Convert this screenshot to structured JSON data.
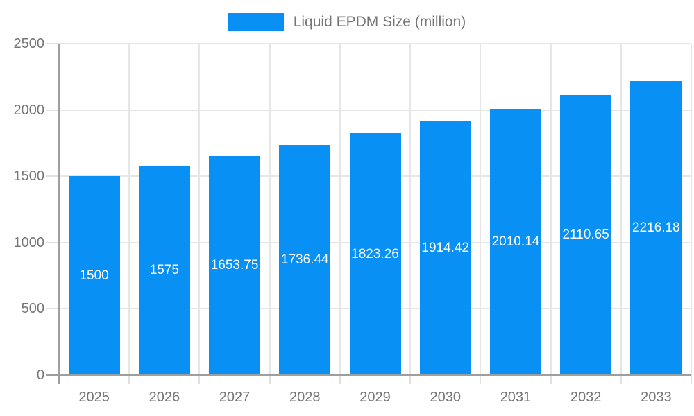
{
  "legend": {
    "label": "Liquid EPDM Size (million)"
  },
  "colors": {
    "bar": "#0890f5",
    "grid": "#e6e6e6",
    "tick": "#e0e0e0",
    "axis": "#9e9e9e",
    "axis_text": "#757575",
    "legend_text": "#757575",
    "value_text": "#ffffff",
    "background": "#ffffff"
  },
  "chart_data": {
    "type": "bar",
    "title": "Liquid EPDM Size (million)",
    "categories": [
      "2025",
      "2026",
      "2027",
      "2028",
      "2029",
      "2030",
      "2031",
      "2032",
      "2033"
    ],
    "values": [
      1500,
      1575,
      1653.75,
      1736.44,
      1823.26,
      1914.42,
      2010.14,
      2110.65,
      2216.18
    ],
    "value_labels": [
      "1500",
      "1575",
      "1653.75",
      "1736.44",
      "1823.26",
      "1914.42",
      "2010.14",
      "2110.65",
      "2216.18"
    ],
    "xlabel": "",
    "ylabel": "",
    "ylim": [
      0,
      2500
    ],
    "yticks": [
      0,
      500,
      1000,
      1500,
      2000,
      2500
    ],
    "grid": true,
    "legend_position": "top",
    "value_label_position": "inside-center"
  }
}
